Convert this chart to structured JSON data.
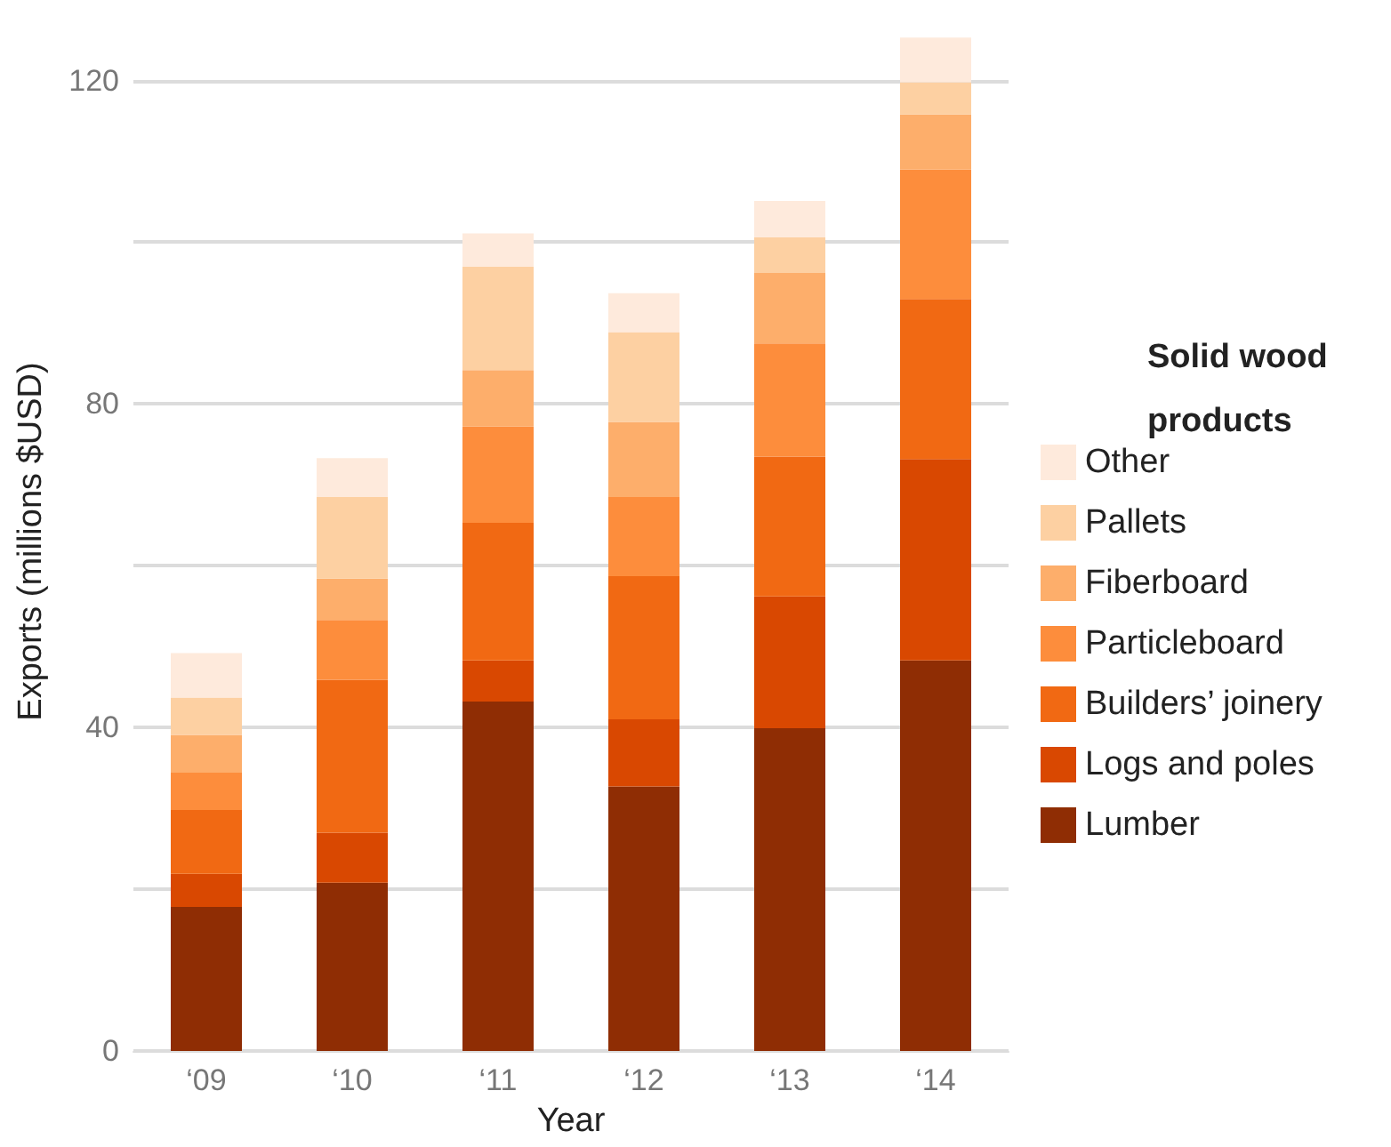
{
  "chart_data": {
    "type": "bar",
    "stacked": true,
    "xlabel": "Year",
    "ylabel": "Exports (millions $USD)",
    "legend_title": "Solid wood products",
    "legend": "right",
    "grid": "y",
    "categories": [
      "‘09",
      "‘10",
      "‘11",
      "‘12",
      "‘13",
      "‘14"
    ],
    "ylim": [
      0,
      126
    ],
    "yticks": [
      0,
      {
        "value": 20,
        "label": null
      },
      40,
      {
        "value": 60,
        "label": null
      },
      80,
      {
        "value": 100,
        "label": null
      },
      120
    ],
    "series": [
      {
        "name": "Lumber",
        "color": "#8f2d04",
        "values": [
          17.8,
          20.8,
          43.2,
          32.7,
          39.9,
          48.3
        ]
      },
      {
        "name": "Logs and poles",
        "color": "#d94801",
        "values": [
          4.1,
          6.2,
          5.1,
          8.3,
          16.3,
          24.9
        ]
      },
      {
        "name": "Builders’ joinery",
        "color": "#f16913",
        "values": [
          7.9,
          18.9,
          17.0,
          17.7,
          17.3,
          19.8
        ]
      },
      {
        "name": "Particleboard",
        "color": "#fd8d3c",
        "values": [
          4.6,
          7.4,
          11.9,
          9.8,
          14.0,
          16.0
        ]
      },
      {
        "name": "Fiberboard",
        "color": "#fdae6b",
        "values": [
          4.7,
          5.1,
          7.0,
          9.3,
          8.7,
          6.8
        ]
      },
      {
        "name": "Pallets",
        "color": "#fdd0a2",
        "values": [
          4.6,
          10.1,
          12.8,
          11.1,
          4.4,
          4.0
        ]
      },
      {
        "name": "Other",
        "color": "#feeadc",
        "values": [
          5.5,
          4.8,
          4.1,
          4.8,
          4.5,
          5.5
        ]
      }
    ]
  }
}
